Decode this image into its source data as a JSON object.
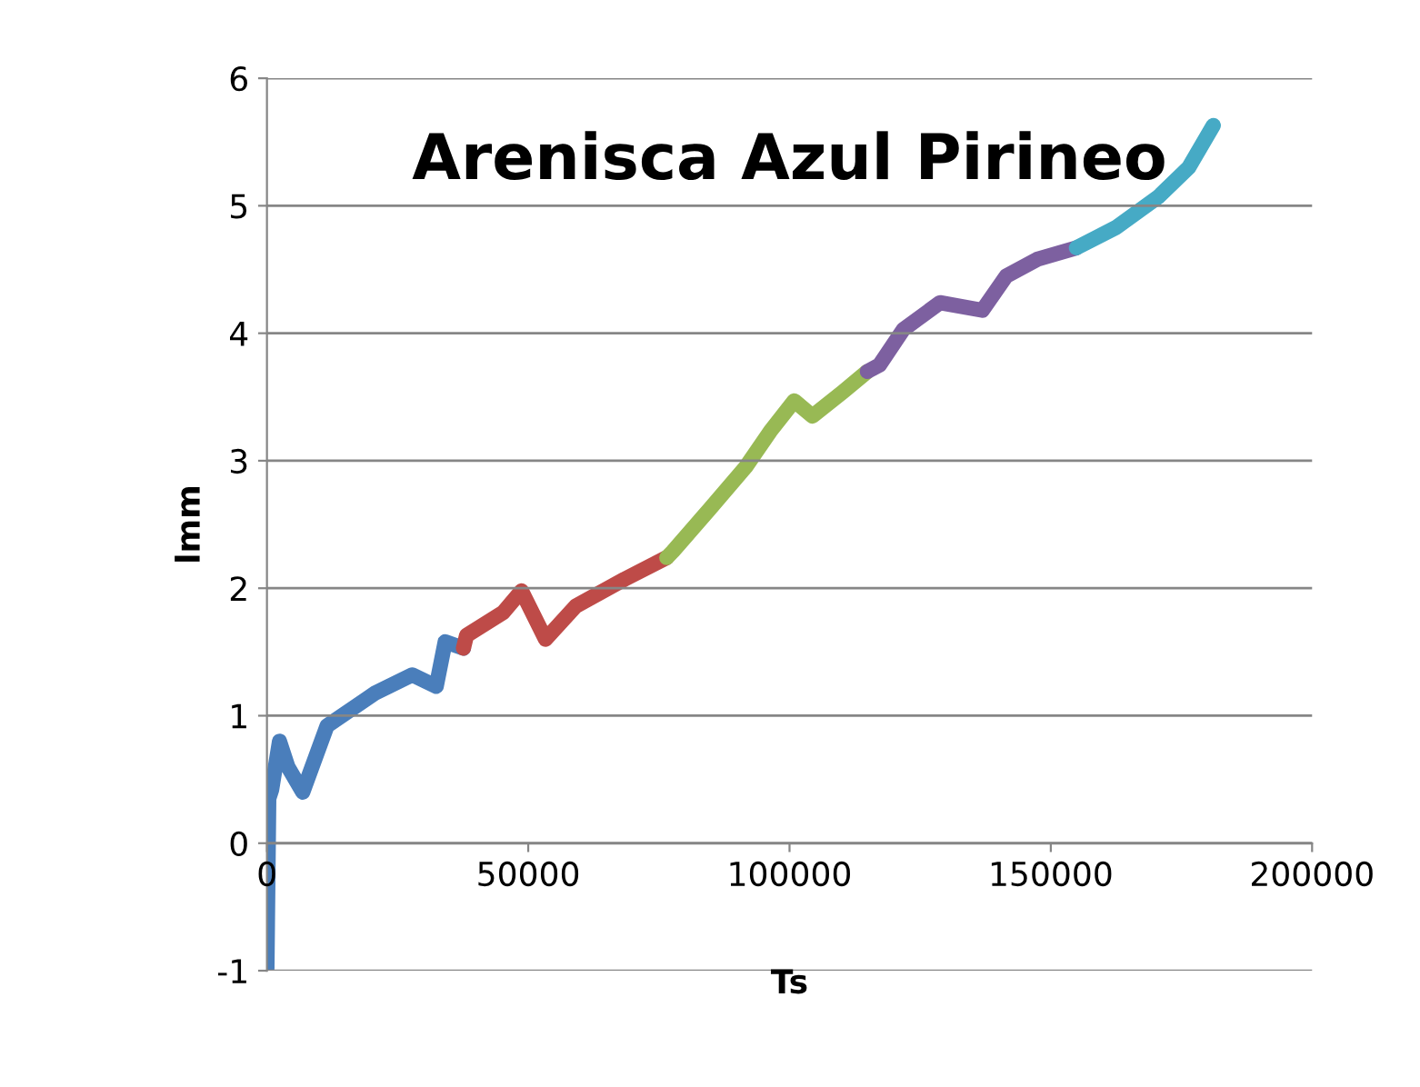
{
  "chart_data": {
    "type": "line",
    "title": "Arenisca Azul Pirineo",
    "xlabel": "Ts",
    "ylabel": "lmm",
    "xlim": [
      0,
      200000
    ],
    "xticks": [
      0,
      50000,
      100000,
      150000,
      200000
    ],
    "ylim": [
      -1,
      6
    ],
    "yticks": [
      -1,
      0,
      1,
      2,
      3,
      4,
      5,
      6
    ],
    "grid": "y",
    "legend": false,
    "marker": "none",
    "line_style": "solid",
    "series": [
      {
        "color": "#4a7ebb",
        "x": [
          0,
          350,
          900,
          2400,
          4000,
          6850,
          11500,
          20800,
          27800,
          32400,
          34100,
          37600
        ],
        "values": [
          -0.98,
          0.35,
          0.42,
          0.8,
          0.6,
          0.4,
          0.92,
          1.18,
          1.32,
          1.23,
          1.58,
          1.53
        ]
      },
      {
        "color": "#be4b48",
        "x": [
          37600,
          38200,
          45200,
          48700,
          53300,
          59100,
          68400,
          76500
        ],
        "values": [
          1.53,
          1.63,
          1.81,
          1.98,
          1.6,
          1.86,
          2.07,
          2.24
        ]
      },
      {
        "color": "#98b954",
        "x": [
          76500,
          77700,
          84700,
          91600,
          96300,
          100900,
          104400,
          110200,
          114900
        ],
        "values": [
          2.24,
          2.29,
          2.62,
          2.95,
          3.23,
          3.47,
          3.35,
          3.54,
          3.7
        ]
      },
      {
        "color": "#7d60a0",
        "x": [
          114900,
          117200,
          121800,
          128800,
          136900,
          141500,
          147400,
          154900
        ],
        "values": [
          3.7,
          3.75,
          4.03,
          4.24,
          4.18,
          4.45,
          4.58,
          4.67
        ]
      },
      {
        "color": "#46aac5",
        "x": [
          154900,
          162500,
          170600,
          176400,
          181100
        ],
        "values": [
          4.67,
          4.83,
          5.07,
          5.3,
          5.63
        ]
      }
    ]
  }
}
